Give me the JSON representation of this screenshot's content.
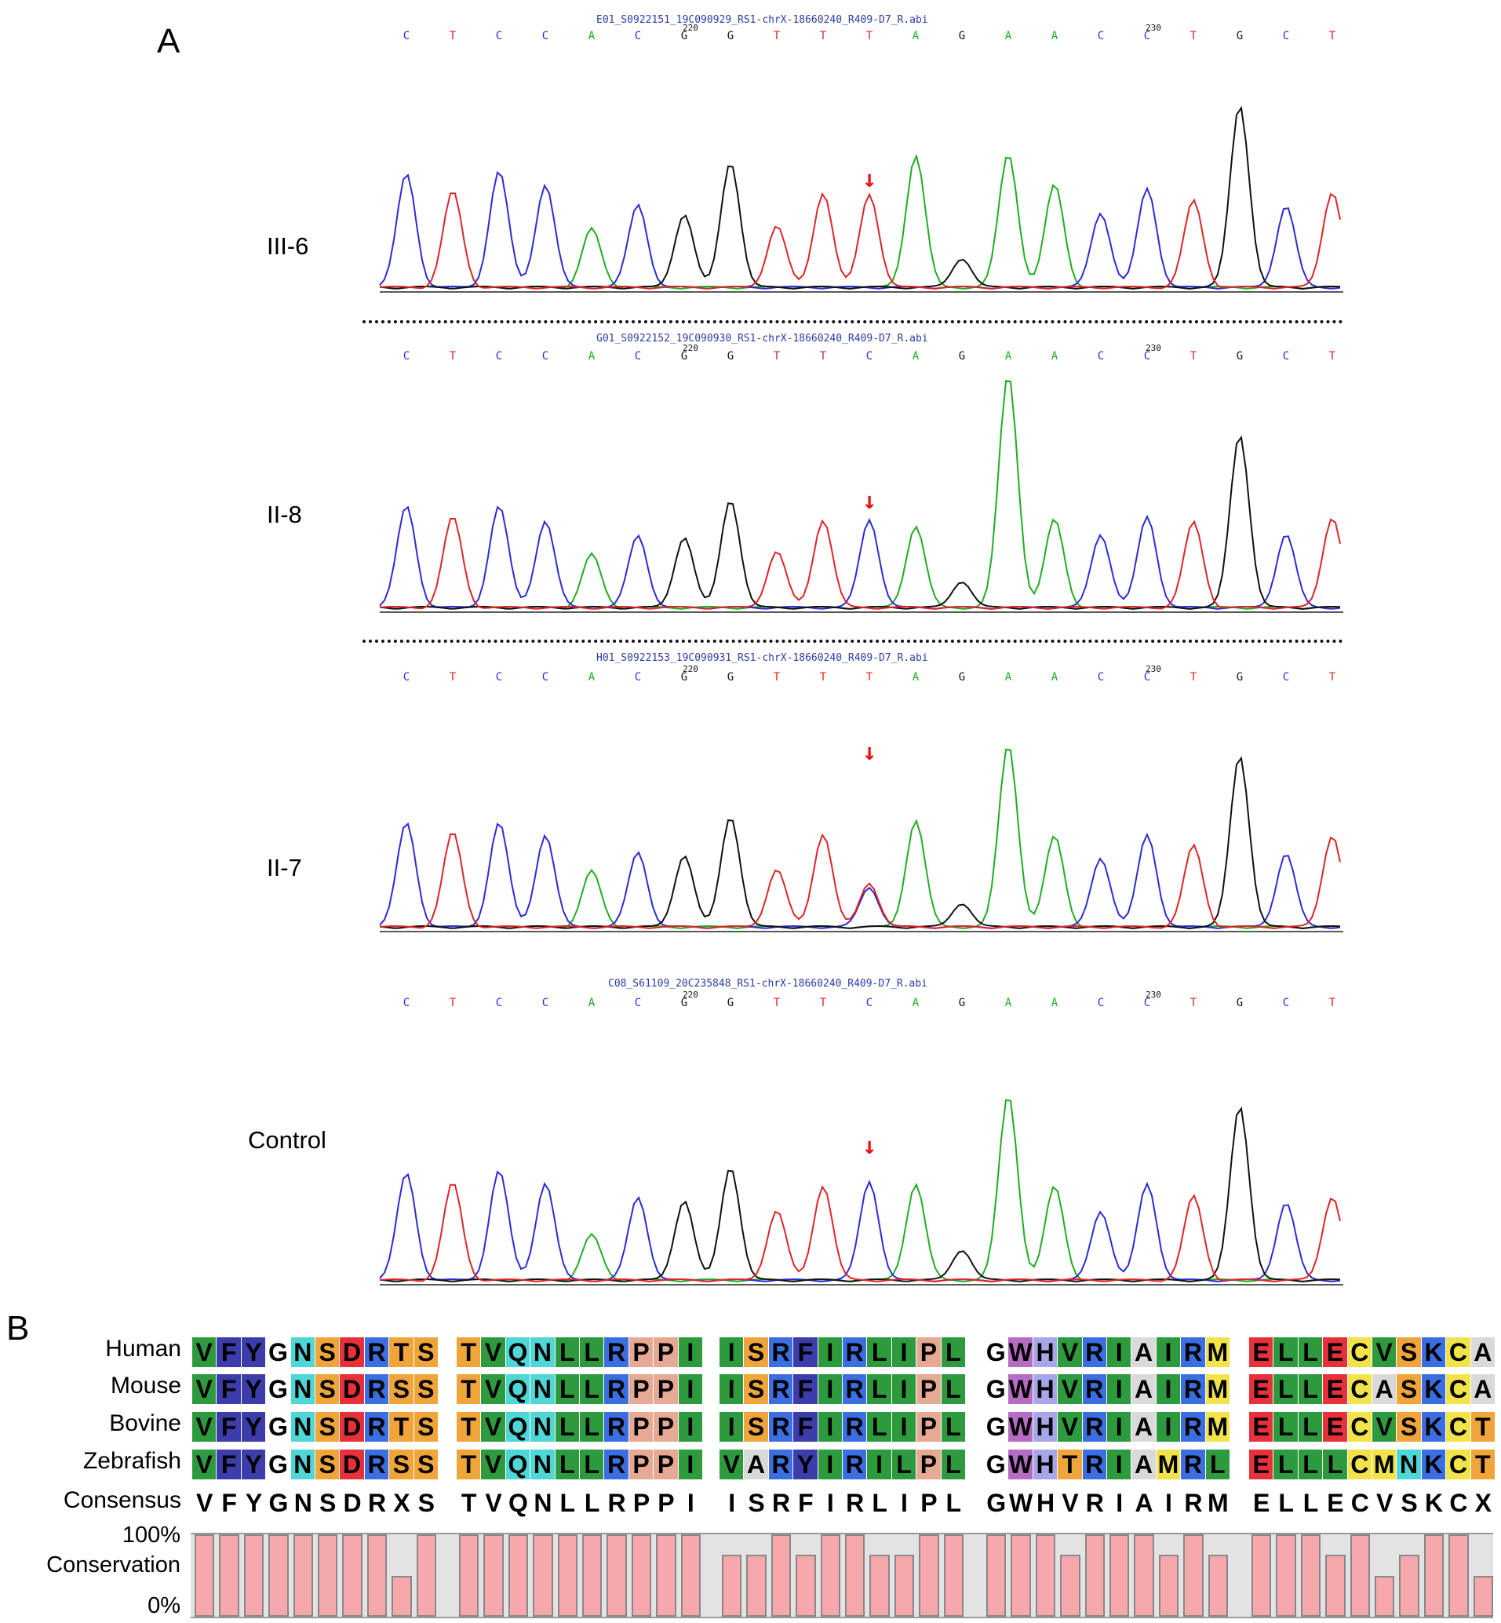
{
  "panelA": {
    "letter": "A",
    "tracks": [
      {
        "label": "III-6",
        "file": "E01_S0922151_19C090929_RS1-chrX-18660240_R409-D7_R.abi",
        "bases": [
          "C",
          "T",
          "C",
          "C",
          "A",
          "C",
          "G",
          "G",
          "T",
          "T",
          "T",
          "A",
          "G",
          "A",
          "A",
          "C",
          "C",
          "T",
          "G",
          "C",
          "T"
        ],
        "position_markers": [
          "220",
          "230"
        ],
        "arrow": "↓",
        "peaks": [
          0.85,
          0.72,
          0.87,
          0.77,
          0.44,
          0.62,
          0.55,
          0.94,
          0.46,
          0.71,
          0.7,
          0.99,
          0.22,
          1.0,
          0.77,
          0.56,
          0.74,
          0.65,
          1.37,
          0.61,
          0.72
        ],
        "secondary_at_11": 0.0
      },
      {
        "label": "II-8",
        "file": "G01_S0922152_19C090930_RS1-chrX-18660240_R409-D7_R.abi",
        "bases": [
          "C",
          "T",
          "C",
          "C",
          "A",
          "C",
          "G",
          "G",
          "T",
          "T",
          "C",
          "A",
          "G",
          "A",
          "A",
          "C",
          "C",
          "T",
          "G",
          "C",
          "T"
        ],
        "position_markers": [
          "220",
          "230"
        ],
        "arrow": "↓",
        "peaks": [
          0.76,
          0.68,
          0.76,
          0.65,
          0.4,
          0.54,
          0.53,
          0.81,
          0.42,
          0.66,
          0.66,
          0.61,
          0.2,
          1.75,
          0.66,
          0.55,
          0.68,
          0.64,
          1.3,
          0.55,
          0.68
        ],
        "secondary_at_11": 0.0
      },
      {
        "label": "II-7",
        "file": "H01_S0922153_19C090931_RS1-chrX-18660240_R409-D7_R.abi",
        "bases": [
          "C",
          "T",
          "C",
          "C",
          "A",
          "C",
          "G",
          "G",
          "T",
          "T",
          "T",
          "A",
          "G",
          "A",
          "A",
          "C",
          "C",
          "T",
          "G",
          "C",
          "T"
        ],
        "position_markers": [
          "220",
          "230"
        ],
        "arrow": "↓",
        "peaks": [
          0.78,
          0.71,
          0.78,
          0.69,
          0.42,
          0.56,
          0.54,
          0.83,
          0.43,
          0.7,
          0.33,
          0.8,
          0.18,
          1.37,
          0.68,
          0.52,
          0.69,
          0.61,
          1.29,
          0.55,
          0.69
        ],
        "secondary_at_11": 0.33
      },
      {
        "label": "Control",
        "file": "C08_S61109_20C235848_RS1-chrX-18660240_R409-D7_R.abi",
        "bases": [
          "C",
          "T",
          "C",
          "C",
          "A",
          "C",
          "G",
          "G",
          "T",
          "T",
          "C",
          "A",
          "G",
          "A",
          "A",
          "C",
          "C",
          "T",
          "G",
          "C",
          "T"
        ],
        "position_markers": [
          "220",
          "230"
        ],
        "arrow": "↓",
        "peaks": [
          0.8,
          0.73,
          0.82,
          0.73,
          0.34,
          0.62,
          0.6,
          0.85,
          0.52,
          0.71,
          0.74,
          0.72,
          0.23,
          1.39,
          0.7,
          0.52,
          0.72,
          0.63,
          1.31,
          0.58,
          0.63
        ],
        "secondary_at_11": 0.0
      }
    ],
    "colors": {
      "A": "#1fae1f",
      "C": "#2b2bd9",
      "G": "#111111",
      "T": "#e02424",
      "arrow": "#e81414"
    }
  },
  "panelB": {
    "letter": "B",
    "species": [
      "Human",
      "Mouse",
      "Bovine",
      "Zebrafish"
    ],
    "blocks": [
      {
        "seqs": [
          "VFYGNSDRTS",
          "VFYGNSDRSS",
          "VFYGNSDRTS",
          "VFYGNSDRSS"
        ],
        "consensus": "VFYGNSDRXS"
      },
      {
        "seqs": [
          "TVQNLLRPPI",
          "TVQNLLRPPI",
          "TVQNLLRPPI",
          "TVQNLLRPPI"
        ],
        "consensus": "TVQNLLRPPI"
      },
      {
        "seqs": [
          "ISRFIRLIPL",
          "ISRFIRLIPL",
          "ISRFIRLIPL",
          "VARYIRILPL"
        ],
        "consensus": "ISRFIRLIPL"
      },
      {
        "seqs": [
          "GWHVRIAIRM",
          "GWHVRIAIRM",
          "GWHVRIAIRM",
          "GWHTRIAMRL"
        ],
        "consensus": "GWHVRIAIRM"
      },
      {
        "seqs": [
          "ELLECVSKCA",
          "ELLECASKCA",
          "ELLECVSKCT",
          "ELLLCMNKCT"
        ],
        "consensus": "ELLECVSKCX"
      }
    ],
    "consensus_label": "Consensus",
    "conservation_label": "Conservation",
    "axis_top": "100%",
    "axis_bottom": "0%",
    "conservation": [
      [
        1,
        1,
        1,
        1,
        1,
        1,
        1,
        1,
        0.5,
        1
      ],
      [
        1,
        1,
        1,
        1,
        1,
        1,
        1,
        1,
        1,
        1
      ],
      [
        0.75,
        0.75,
        1,
        0.75,
        1,
        1,
        0.75,
        0.75,
        1,
        1
      ],
      [
        1,
        1,
        1,
        0.75,
        1,
        1,
        1,
        0.75,
        1,
        0.75
      ],
      [
        1,
        1,
        1,
        0.75,
        1,
        0.5,
        0.75,
        1,
        1,
        0.5
      ]
    ],
    "residue_colors": {
      "V": "#2e9a3e",
      "I": "#2e9a3e",
      "L": "#2e9a3e",
      "M": "#f2e34a",
      "F": "#3c3caa",
      "Y": "#3c3caa",
      "W": "#b76cc4",
      "G": "#ffffff",
      "N": "#4fd6d6",
      "Q": "#4fd6d6",
      "S": "#f0a53a",
      "T": "#f0a53a",
      "D": "#e8303a",
      "E": "#e8303a",
      "R": "#3b6ee0",
      "K": "#3b6ee0",
      "H": "#a6a6e8",
      "P": "#e6a994",
      "C": "#f2e34a",
      "A": "#d9d9d9"
    },
    "bar_color": "#f7a8ac"
  }
}
